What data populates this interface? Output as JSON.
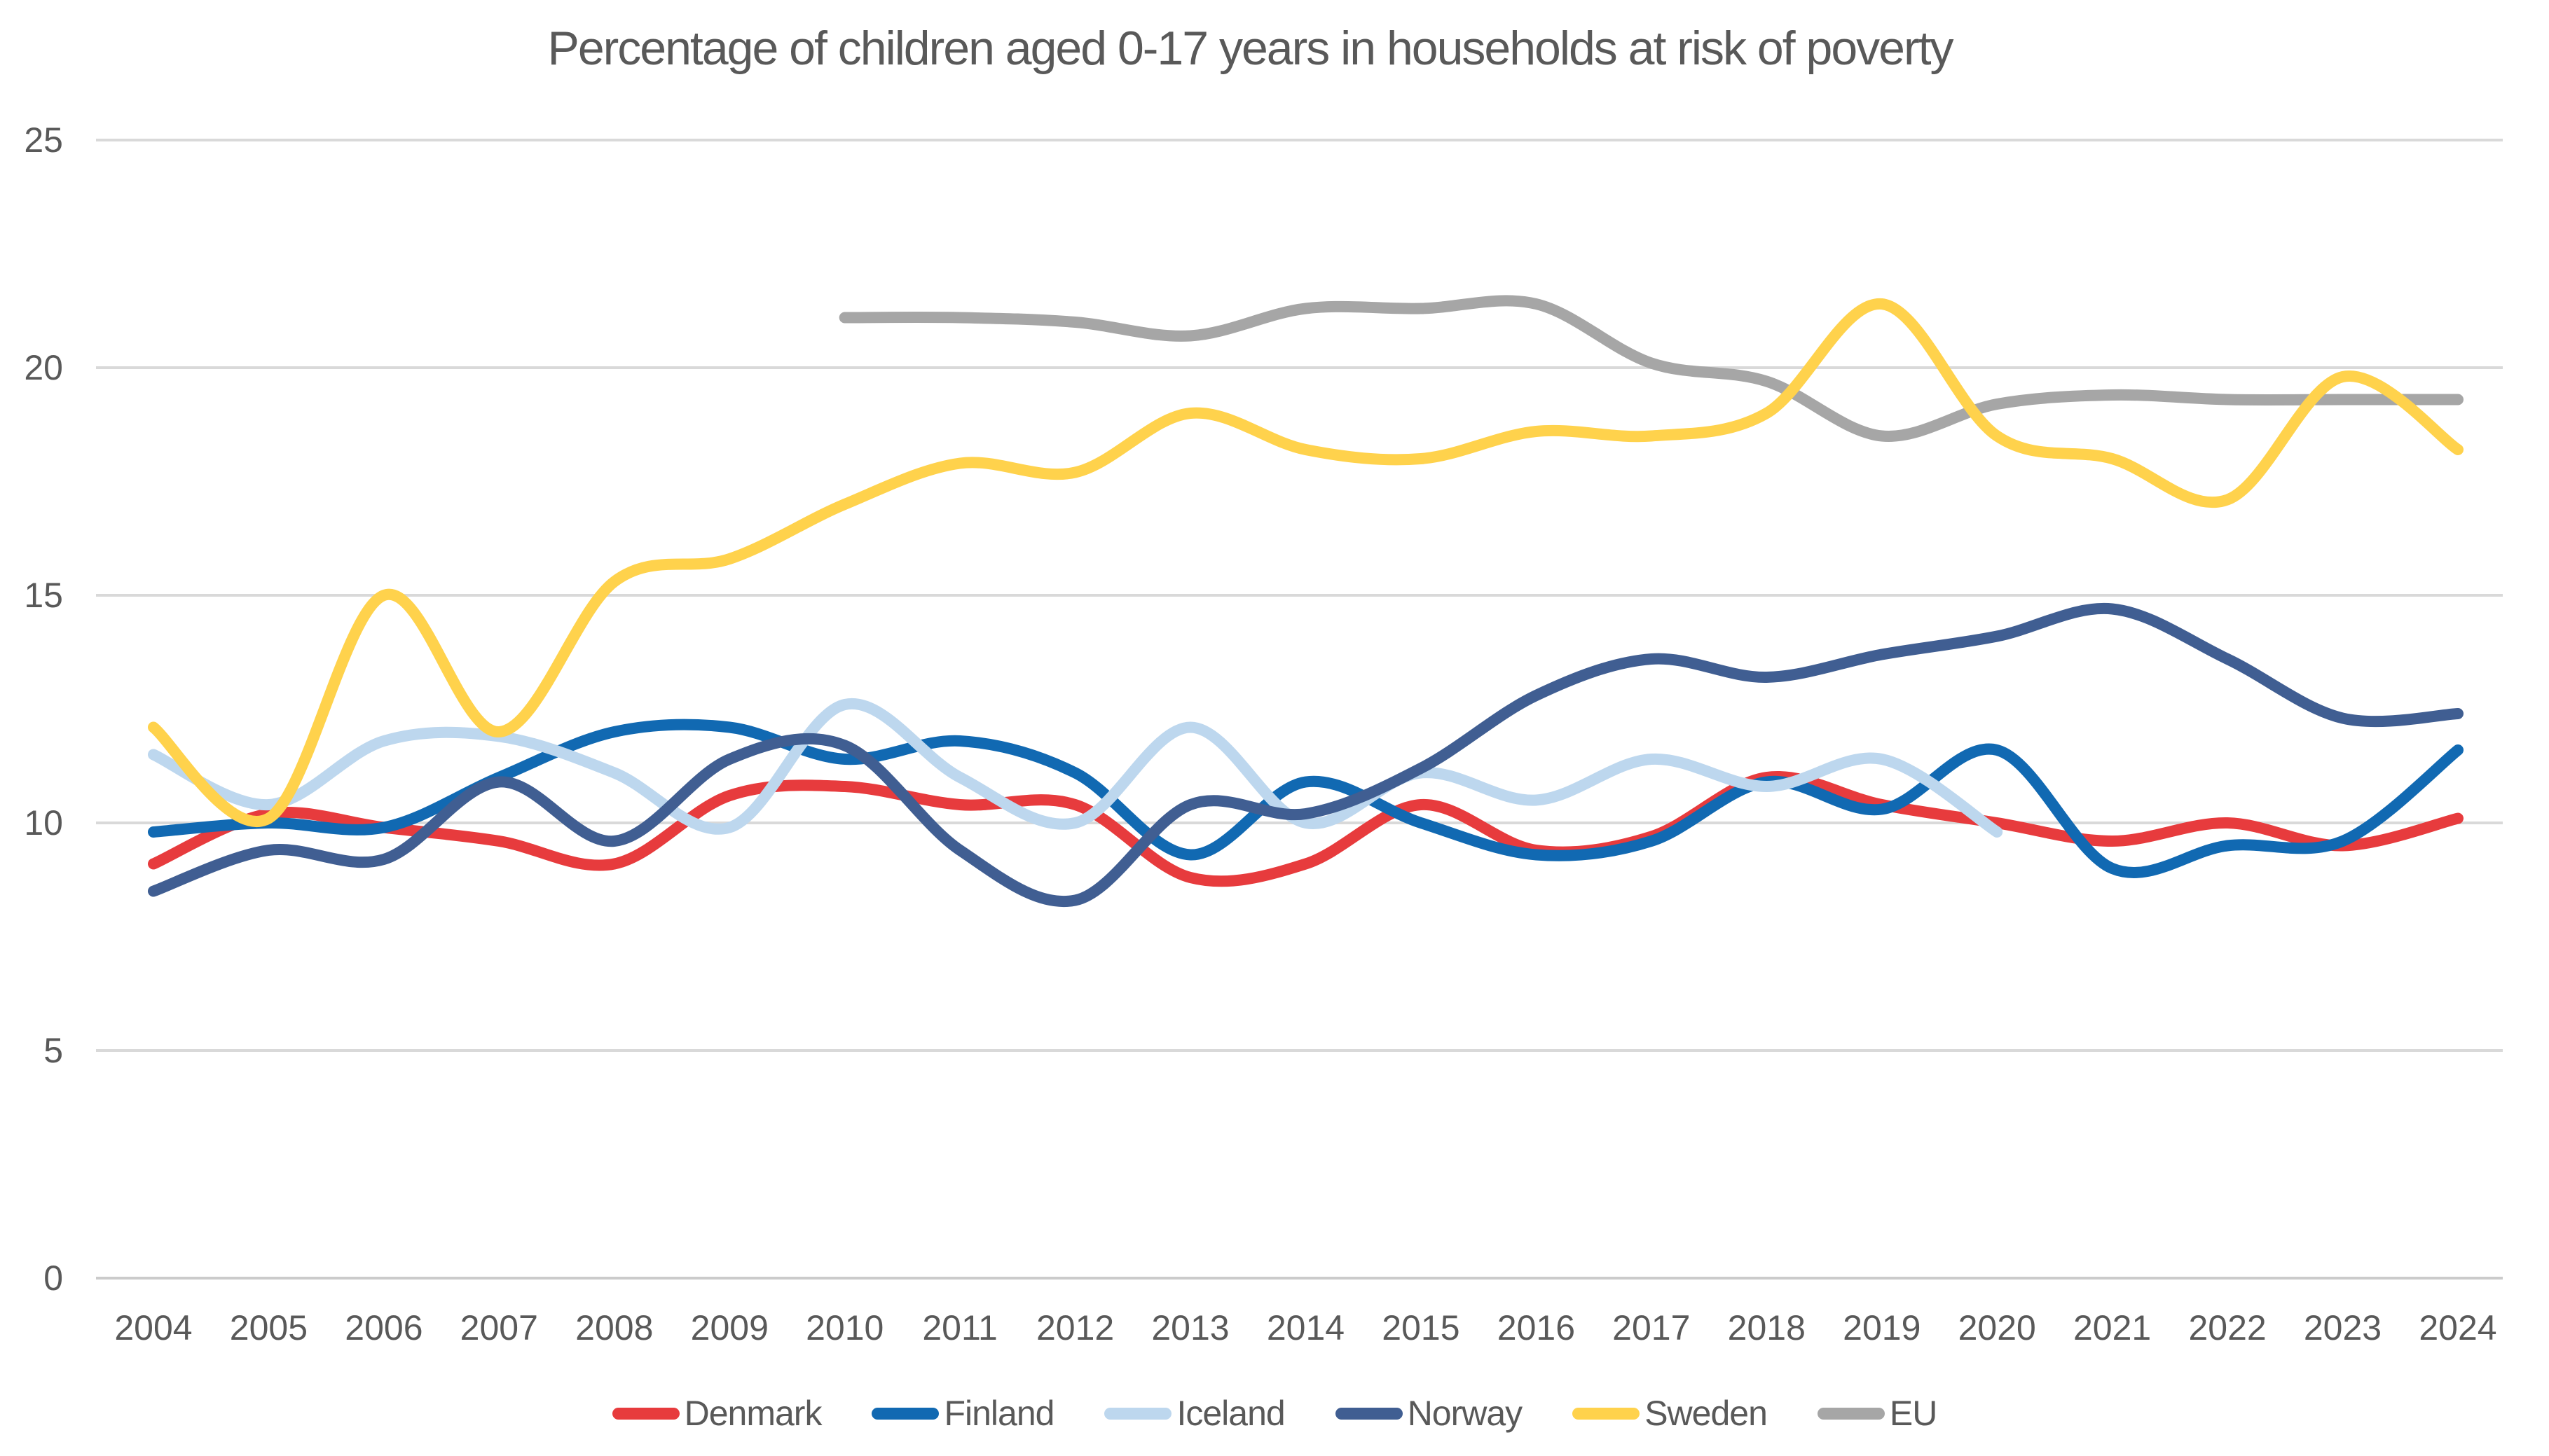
{
  "page": {
    "background": "#FFFFFF",
    "text_color": "#595959",
    "grid_color": "#D9D9D9",
    "axis_line_color": "#CBCBCB"
  },
  "chart_data": {
    "type": "line",
    "title": "Percentage of children aged 0-17 years in households at risk of poverty",
    "xlabel": "",
    "ylabel": "",
    "x": [
      2004,
      2005,
      2006,
      2007,
      2008,
      2009,
      2010,
      2011,
      2012,
      2013,
      2014,
      2015,
      2016,
      2017,
      2018,
      2019,
      2020,
      2021,
      2022,
      2023,
      2024
    ],
    "ylim": [
      0,
      25
    ],
    "yticks": [
      0,
      5,
      10,
      15,
      20,
      25
    ],
    "grid": true,
    "smooth": true,
    "legend_position": "bottom",
    "series": [
      {
        "name": "Denmark",
        "color": "#E73B3D",
        "values": [
          9.1,
          10.2,
          9.9,
          9.6,
          9.1,
          10.6,
          10.8,
          10.4,
          10.4,
          8.8,
          9.1,
          10.4,
          9.4,
          9.7,
          11.0,
          10.4,
          10.0,
          9.6,
          10.0,
          9.5,
          10.1
        ]
      },
      {
        "name": "Finland",
        "color": "#1169B2",
        "values": [
          9.8,
          10.0,
          9.9,
          11.0,
          12.0,
          12.1,
          11.4,
          11.8,
          11.1,
          9.3,
          10.9,
          10.0,
          9.3,
          9.6,
          10.9,
          10.3,
          11.6,
          9.0,
          9.5,
          9.6,
          11.6
        ]
      },
      {
        "name": "Iceland",
        "color": "#BDD7EE",
        "values": [
          11.5,
          10.4,
          11.8,
          11.9,
          11.1,
          9.9,
          12.6,
          11.0,
          10.0,
          12.1,
          10.0,
          11.1,
          10.5,
          11.4,
          10.8,
          11.4,
          9.8,
          null,
          null,
          null,
          null
        ]
      },
      {
        "name": "Norway",
        "color": "#405E92",
        "values": [
          8.5,
          9.4,
          9.2,
          10.9,
          9.6,
          11.4,
          11.7,
          9.4,
          8.3,
          10.4,
          10.2,
          11.2,
          12.8,
          13.6,
          13.2,
          13.7,
          14.1,
          14.7,
          13.6,
          12.3,
          12.4
        ]
      },
      {
        "name": "Sweden",
        "color": "#FFD24C",
        "values": [
          12.1,
          10.1,
          15.0,
          12.0,
          15.3,
          15.8,
          17.0,
          17.9,
          17.7,
          19.0,
          18.2,
          18.0,
          18.6,
          18.5,
          19.0,
          21.4,
          18.5,
          18.0,
          17.1,
          19.8,
          18.2
        ]
      },
      {
        "name": "EU",
        "color": "#A6A6A6",
        "values": [
          null,
          null,
          null,
          null,
          null,
          null,
          21.1,
          21.1,
          21.0,
          20.7,
          21.3,
          21.3,
          21.4,
          20.1,
          19.7,
          18.5,
          19.2,
          19.4,
          19.3,
          19.3,
          19.3
        ]
      }
    ],
    "draw_order": [
      "Denmark",
      "Finland",
      "Iceland",
      "Norway",
      "EU",
      "Sweden"
    ]
  }
}
